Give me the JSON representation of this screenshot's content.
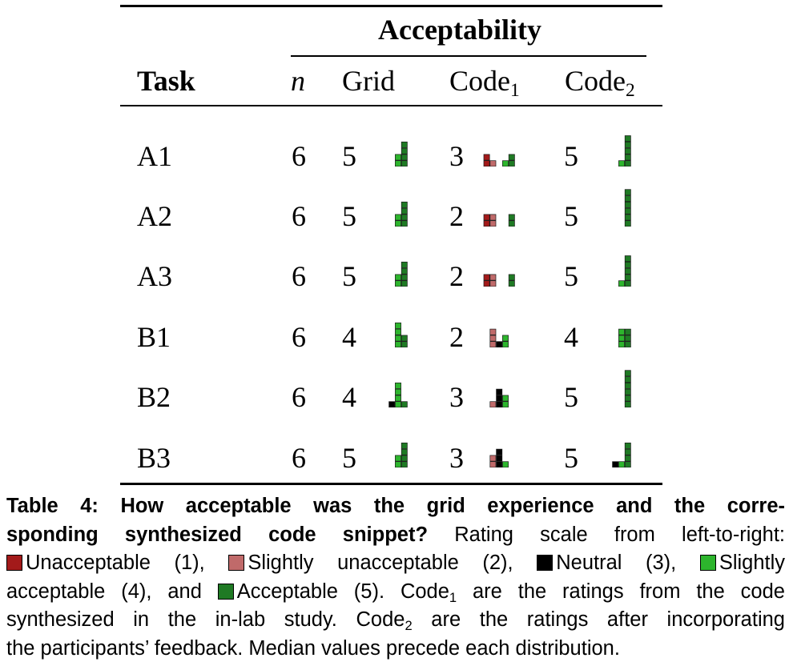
{
  "table": {
    "group_header": "Acceptability",
    "columns": {
      "task": "Task",
      "n": "n",
      "grid": "Grid",
      "code1_base": "Code",
      "code1_sub": "1",
      "code2_base": "Code",
      "code2_sub": "2"
    },
    "rows": [
      {
        "task": "A1",
        "n": "6",
        "grid_median": "5",
        "code1_median": "3",
        "code2_median": "5",
        "grid_dist": [
          0,
          0,
          0,
          2,
          4
        ],
        "code1_dist": [
          2,
          1,
          0,
          1,
          2
        ],
        "code2_dist": [
          0,
          0,
          0,
          1,
          5
        ]
      },
      {
        "task": "A2",
        "n": "6",
        "grid_median": "5",
        "code1_median": "2",
        "code2_median": "5",
        "grid_dist": [
          0,
          0,
          0,
          2,
          4
        ],
        "code1_dist": [
          2,
          2,
          0,
          0,
          2
        ],
        "code2_dist": [
          0,
          0,
          0,
          0,
          6
        ]
      },
      {
        "task": "A3",
        "n": "6",
        "grid_median": "5",
        "code1_median": "2",
        "code2_median": "5",
        "grid_dist": [
          0,
          0,
          0,
          2,
          4
        ],
        "code1_dist": [
          2,
          2,
          0,
          0,
          2
        ],
        "code2_dist": [
          0,
          0,
          0,
          1,
          5
        ]
      },
      {
        "task": "B1",
        "n": "6",
        "grid_median": "4",
        "code1_median": "2",
        "code2_median": "4",
        "grid_dist": [
          0,
          0,
          0,
          4,
          2
        ],
        "code1_dist": [
          0,
          3,
          1,
          2,
          0
        ],
        "code2_dist": [
          0,
          0,
          0,
          3,
          3
        ]
      },
      {
        "task": "B2",
        "n": "6",
        "grid_median": "4",
        "code1_median": "3",
        "code2_median": "5",
        "grid_dist": [
          0,
          0,
          1,
          4,
          1
        ],
        "code1_dist": [
          0,
          1,
          3,
          2,
          0
        ],
        "code2_dist": [
          0,
          0,
          0,
          0,
          6
        ]
      },
      {
        "task": "B3",
        "n": "6",
        "grid_median": "5",
        "code1_median": "3",
        "code2_median": "5",
        "grid_dist": [
          0,
          0,
          0,
          2,
          4
        ],
        "code1_dist": [
          0,
          2,
          3,
          1,
          0
        ],
        "code2_dist": [
          0,
          0,
          1,
          1,
          4
        ]
      }
    ]
  },
  "rating_colors": [
    "#a31a1a",
    "#c06a6a",
    "#000000",
    "#2db52d",
    "#1f7a24"
  ],
  "caption": {
    "label": "Table 4:",
    "question_line1": "How acceptable was the grid experience and the corre-",
    "question_line2": "sponding synthesized code snippet?",
    "line2_rest": "Rating scale from left-to-right:",
    "scale": [
      {
        "text": "Unacceptable (1),",
        "color_index": 0
      },
      {
        "text": "Slightly unacceptable (2),",
        "color_index": 1
      },
      {
        "text": "Neutral (3),",
        "color_index": 2
      },
      {
        "text": "Slightly",
        "color_index": 3
      }
    ],
    "line4_start": "acceptable (4), and",
    "line4_acceptable": "Acceptable (5).",
    "line4_code": "Code",
    "line4_code_sub": "1",
    "line4_end": "are the ratings from the code",
    "line5_start": "synthesized in the in-lab study.",
    "line5_code": "Code",
    "line5_code_sub": "2",
    "line5_end": "are the ratings after incorporating",
    "line6": "the participants’ feedback. Median values precede each distribution."
  }
}
